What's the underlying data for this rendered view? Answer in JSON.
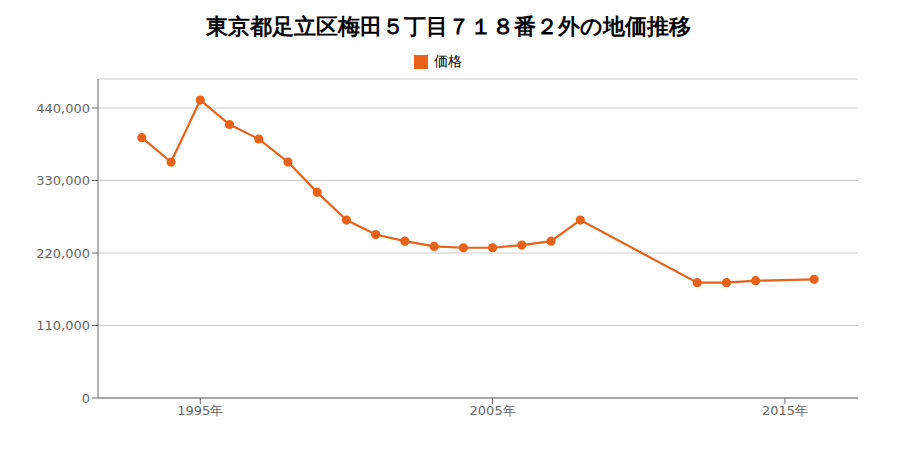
{
  "chart_data": {
    "type": "line",
    "title": "東京都足立区梅田５丁目７１８番２外の地価推移",
    "x": [
      1993,
      1994,
      1995,
      1996,
      1997,
      1998,
      1999,
      2000,
      2001,
      2002,
      2003,
      2004,
      2005,
      2006,
      2007,
      2008,
      2012,
      2013,
      2014,
      2016
    ],
    "series": [
      {
        "name": "価格",
        "color": "#E8621A",
        "values": [
          395000,
          358000,
          452000,
          415000,
          393000,
          358000,
          312000,
          270000,
          248000,
          238000,
          230000,
          228000,
          228000,
          232000,
          238000,
          270000,
          175000,
          175000,
          178000,
          180000
        ]
      }
    ],
    "xlim": [
      1991.5,
      2017.5
    ],
    "xticks": [
      {
        "value": 1995,
        "label": "1995年"
      },
      {
        "value": 2005,
        "label": "2005年"
      },
      {
        "value": 2015,
        "label": "2015年"
      }
    ],
    "ylim": [
      0,
      484000
    ],
    "yticks": [
      0,
      {
        "value": 110000,
        "label": "110,000"
      },
      {
        "value": 220000,
        "label": "220,000"
      },
      {
        "value": 330000,
        "label": "330,000"
      },
      {
        "value": 440000,
        "label": "440,000"
      }
    ],
    "grid": true,
    "legend": "top",
    "marker": "circle"
  }
}
